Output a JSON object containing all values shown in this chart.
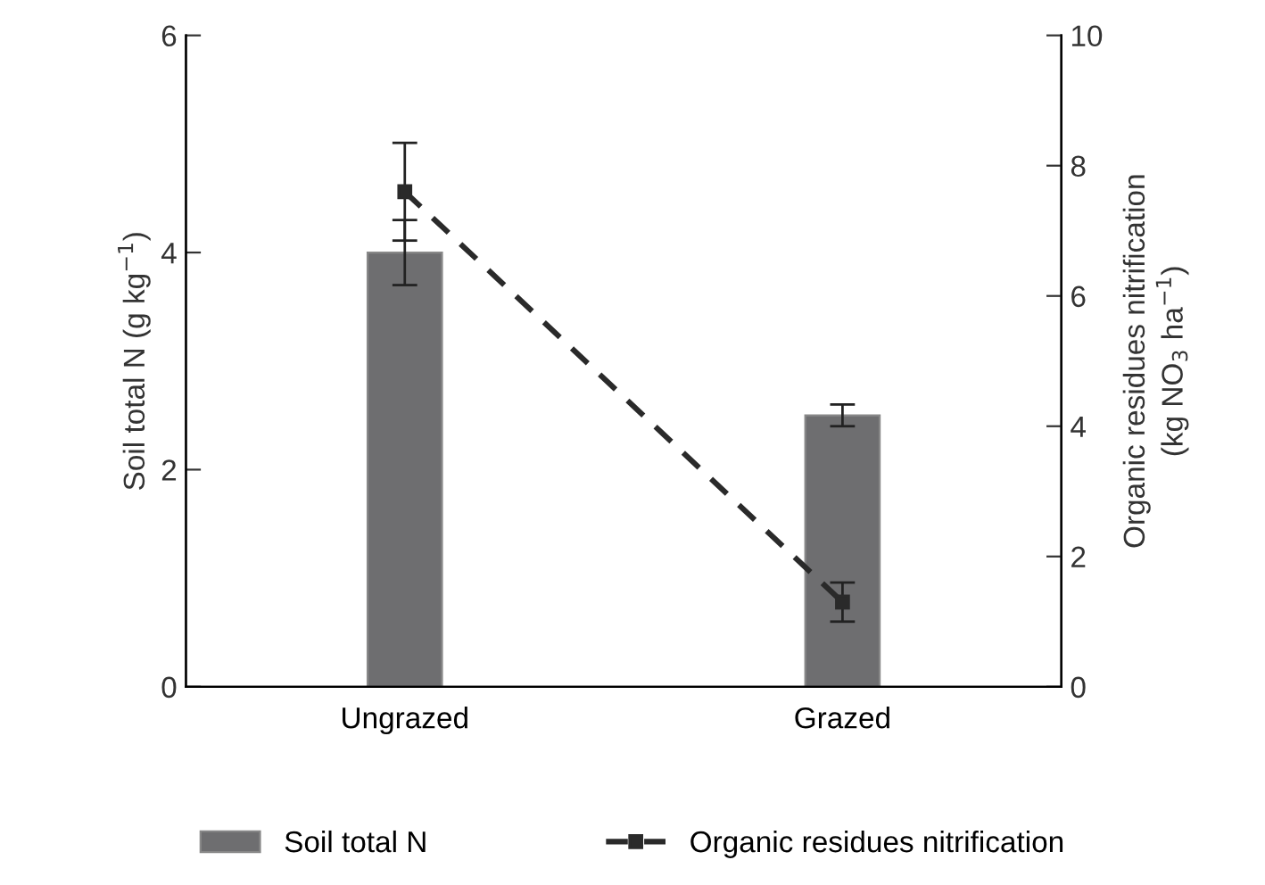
{
  "chart_data": {
    "type": "bar",
    "categories": [
      "Ungrazed",
      "Grazed"
    ],
    "ylabel": "Soil total N (g kg$^{−1}$)",
    "y2label": "Organic residues nitrification\n(kg NO$_{3}$ ha$^{−1}$)",
    "series": [
      {
        "name": "Soil total N",
        "color": "#6e6e70",
        "values": [
          4.0,
          2.5
        ],
        "errors": [
          0.3,
          0.1
        ]
      },
      {
        "name": "Organic residues nitrification",
        "type": "line",
        "axis": "y2",
        "color": "#2a2a2a",
        "values": [
          7.6,
          1.3
        ],
        "errors": [
          0.75,
          0.3
        ],
        "marker": "square",
        "line_style": "dashed"
      }
    ],
    "ylim": [
      0,
      6
    ],
    "yticks": [
      0,
      2,
      4,
      6
    ],
    "y2lim": [
      0,
      10
    ],
    "y2ticks": [
      0,
      2,
      4,
      6,
      8,
      10
    ],
    "grid": false,
    "legend": "bottom"
  }
}
